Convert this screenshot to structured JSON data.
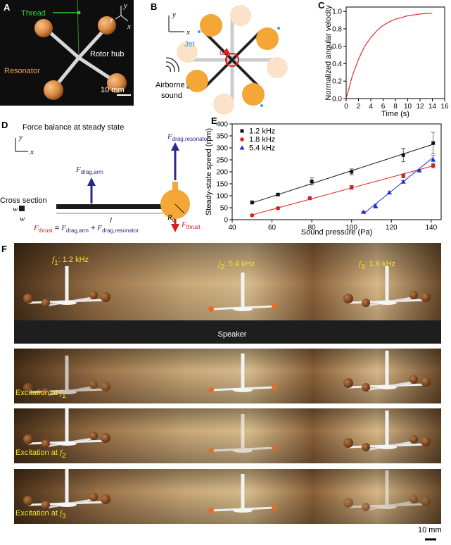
{
  "panel_a": {
    "label": "A",
    "thread": "Thread",
    "axis_y": "y",
    "axis_z": "z",
    "axis_x": "x",
    "rotor_hub": "Rotor hub",
    "resonator": "Resonator",
    "scale_bar": "10 mm"
  },
  "panel_b": {
    "label": "B",
    "axis_y": "y",
    "axis_x": "x",
    "jet": "Jet",
    "omega": "ω",
    "airborne_sound": [
      "Airborne",
      "sound"
    ]
  },
  "chart_data": [
    {
      "panel": "C",
      "type": "line",
      "xlabel": "Time (s)",
      "ylabel": "Normalized angular velocity",
      "x": [
        0,
        1,
        2,
        3,
        4,
        5,
        6,
        7,
        8,
        9,
        10,
        11,
        12,
        13,
        14
      ],
      "series": [
        {
          "color": "#e03030",
          "values": [
            0,
            0.26,
            0.45,
            0.6,
            0.7,
            0.78,
            0.84,
            0.88,
            0.91,
            0.93,
            0.95,
            0.96,
            0.97,
            0.975,
            0.98
          ]
        }
      ],
      "xlim": [
        0,
        16
      ],
      "xticks": [
        0,
        2,
        4,
        6,
        8,
        10,
        12,
        14,
        16
      ],
      "ylim": [
        0,
        1.05
      ],
      "yticks": [
        {
          "value": 0,
          "label": "0.0"
        },
        0.2,
        0.4,
        0.6,
        0.8,
        {
          "value": 1,
          "label": "1.0"
        }
      ]
    },
    {
      "panel": "E",
      "type": "scatter",
      "xlabel": "Sound pressure (Pa)",
      "ylabel": "Steady-state speed (rpm)",
      "legend": "upper left",
      "series": [
        {
          "name": "1.2 kHz",
          "color": "#111111",
          "marker": "square",
          "x": [
            50,
            63,
            80,
            100,
            126,
            141
          ],
          "values": [
            72,
            105,
            160,
            200,
            270,
            320
          ],
          "errors": [
            7,
            5,
            15,
            12,
            28,
            45
          ],
          "fit_x": [
            50,
            141
          ],
          "fit_values": [
            70,
            315
          ]
        },
        {
          "name": "1.8 kHz",
          "color": "#e02020",
          "marker": "circle",
          "x": [
            50,
            63,
            79,
            100,
            126,
            141
          ],
          "values": [
            18,
            48,
            90,
            135,
            183,
            225
          ],
          "errors": [
            3,
            5,
            7,
            8,
            8,
            8
          ],
          "fit_x": [
            50,
            141
          ],
          "fit_values": [
            20,
            225
          ]
        },
        {
          "name": "5.4 kHz",
          "color": "#1a2ad8",
          "marker": "triangle",
          "x": [
            106,
            112,
            119,
            126,
            134,
            141
          ],
          "values": [
            32,
            57,
            113,
            158,
            205,
            250
          ],
          "errors": [
            3,
            8,
            4,
            5,
            4,
            18
          ],
          "fit_x": [
            106,
            141
          ],
          "fit_values": [
            25,
            260
          ]
        }
      ],
      "xlim": [
        40,
        145
      ],
      "xticks": [
        40,
        60,
        80,
        100,
        120,
        140
      ],
      "ylim": [
        0,
        400
      ],
      "yticks": [
        0,
        50,
        100,
        150,
        200,
        250,
        300,
        350,
        400
      ]
    }
  ],
  "panel_d": {
    "label": "D",
    "title": "Force balance at steady state",
    "axis_y": "y",
    "axis_x": "x",
    "f_drag_arm": {
      "symbol": "F",
      "subscript": "drag,arm"
    },
    "f_drag_resonator": {
      "symbol": "F",
      "subscript": "drag,resonator"
    },
    "cross_section": "Cross section",
    "w_vertical": "w",
    "w_horizontal": "w",
    "length": "l",
    "radius": {
      "symbol": "R",
      "subscript": "c"
    },
    "f_thrust": {
      "symbol": "F",
      "subscript": "thrust"
    },
    "equation": {
      "lhs": {
        "symbol": "F",
        "subscript": "thrust"
      },
      "equals": "=",
      "term1": {
        "symbol": "F",
        "subscript": "drag,arm"
      },
      "plus": "+",
      "term2": {
        "symbol": "F",
        "subscript": "drag,resonator"
      }
    }
  },
  "panel_f": {
    "label": "F",
    "frequencies": [
      {
        "symbol": "f",
        "index": "1",
        "text": ": 1.2 kHz"
      },
      {
        "symbol": "f",
        "index": "2",
        "text": ": 5.4 kHz"
      },
      {
        "symbol": "f",
        "index": "3",
        "text": ": 1.8 kHz"
      }
    ],
    "speaker": "Speaker",
    "excitations": [
      {
        "text": "Excitation at ",
        "symbol": "f",
        "index": "1"
      },
      {
        "text": "Excitation at ",
        "symbol": "f",
        "index": "2"
      },
      {
        "text": "Excitation at ",
        "symbol": "f",
        "index": "3"
      }
    ],
    "scale_bar": "10 mm"
  }
}
